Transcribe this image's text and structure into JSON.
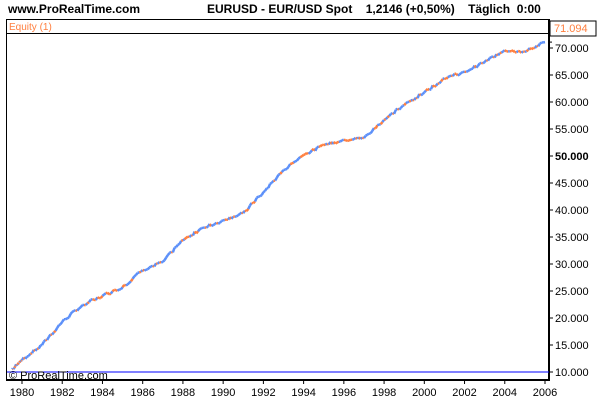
{
  "header": {
    "site": "www.ProRealTime.com",
    "instrument": "EURUSD - EUR/USD Spot",
    "price": "1,2146 (+0,50%)",
    "period": "Täglich",
    "time": "0:00"
  },
  "chart_data": {
    "type": "line",
    "indicator_label": "Equity (1)",
    "watermark": "© ProRealTime.com",
    "last_value_label": "71.094",
    "x": [
      1979.5,
      1980,
      1981,
      1982,
      1983,
      1984,
      1985,
      1986,
      1987,
      1988,
      1989,
      1990,
      1991,
      1992,
      1993,
      1994,
      1995,
      1996,
      1997,
      1998,
      1999,
      2000,
      2001,
      2002,
      2003,
      2004,
      2005,
      2006
    ],
    "y": [
      10500,
      12200,
      15000,
      19300,
      22400,
      24100,
      25700,
      28900,
      30400,
      34400,
      36700,
      38100,
      39400,
      43300,
      47400,
      50200,
      52000,
      53000,
      53300,
      56700,
      59400,
      61800,
      64400,
      65600,
      67400,
      69600,
      69300,
      71094
    ],
    "xticks": [
      "1980",
      "1982",
      "1984",
      "1986",
      "1988",
      "1990",
      "1992",
      "1994",
      "1996",
      "1998",
      "2000",
      "2002",
      "2004",
      "2006"
    ],
    "yticks": [
      "10.000",
      "15.000",
      "20.000",
      "25.000",
      "30.000",
      "35.000",
      "40.000",
      "45.000",
      "50.000",
      "55.000",
      "60.000",
      "65.000",
      "70.000"
    ],
    "reference_line": 10000,
    "ylim": [
      8500,
      73500
    ],
    "colors": {
      "up": "#5b8ff9",
      "down": "#ff7f3f",
      "label": "#ff7f3f",
      "reference": "#0000ff"
    }
  }
}
